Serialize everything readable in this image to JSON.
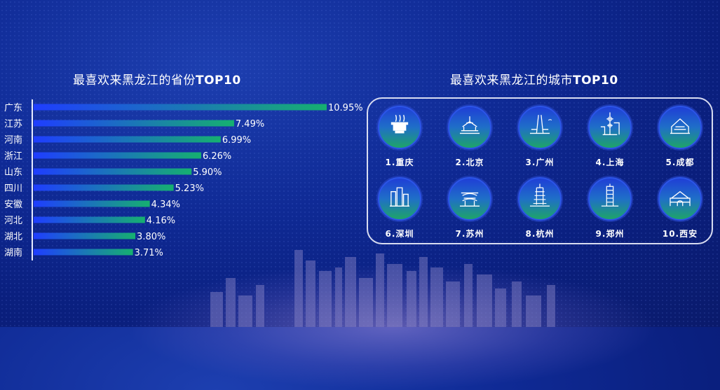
{
  "left_title": {
    "prefix": "最喜欢来黑龙江的省份",
    "suffix": "TOP10"
  },
  "right_title": {
    "prefix": "最喜欢来黑龙江的城市",
    "suffix": "TOP10"
  },
  "chart_data": {
    "type": "bar",
    "orientation": "horizontal",
    "categories": [
      "广东",
      "江苏",
      "河南",
      "浙江",
      "山东",
      "四川",
      "安徽",
      "河北",
      "湖北",
      "湖南"
    ],
    "values": [
      10.95,
      7.49,
      6.99,
      6.26,
      5.9,
      5.23,
      4.34,
      4.16,
      3.8,
      3.71
    ],
    "value_labels": [
      "10.95%",
      "7.49%",
      "6.99%",
      "6.26%",
      "5.90%",
      "5.23%",
      "4.34%",
      "4.16%",
      "3.80%",
      "3.71%"
    ],
    "bar_gradient": [
      "#1f3dff",
      "#16b070"
    ]
  },
  "cities": [
    {
      "label": "1.重庆",
      "icon": "chongqing-hotpot-icon"
    },
    {
      "label": "2.北京",
      "icon": "beijing-temple-icon"
    },
    {
      "label": "3.广州",
      "icon": "guangzhou-tower-icon"
    },
    {
      "label": "4.上海",
      "icon": "shanghai-tower-icon"
    },
    {
      "label": "5.成都",
      "icon": "chengdu-landmark-icon"
    },
    {
      "label": "6.深圳",
      "icon": "shenzhen-skyline-icon"
    },
    {
      "label": "7.苏州",
      "icon": "suzhou-pagoda-icon"
    },
    {
      "label": "8.杭州",
      "icon": "hangzhou-pagoda-icon"
    },
    {
      "label": "9.郑州",
      "icon": "zhengzhou-tower-icon"
    },
    {
      "label": "10.西安",
      "icon": "xian-citygate-icon"
    }
  ]
}
